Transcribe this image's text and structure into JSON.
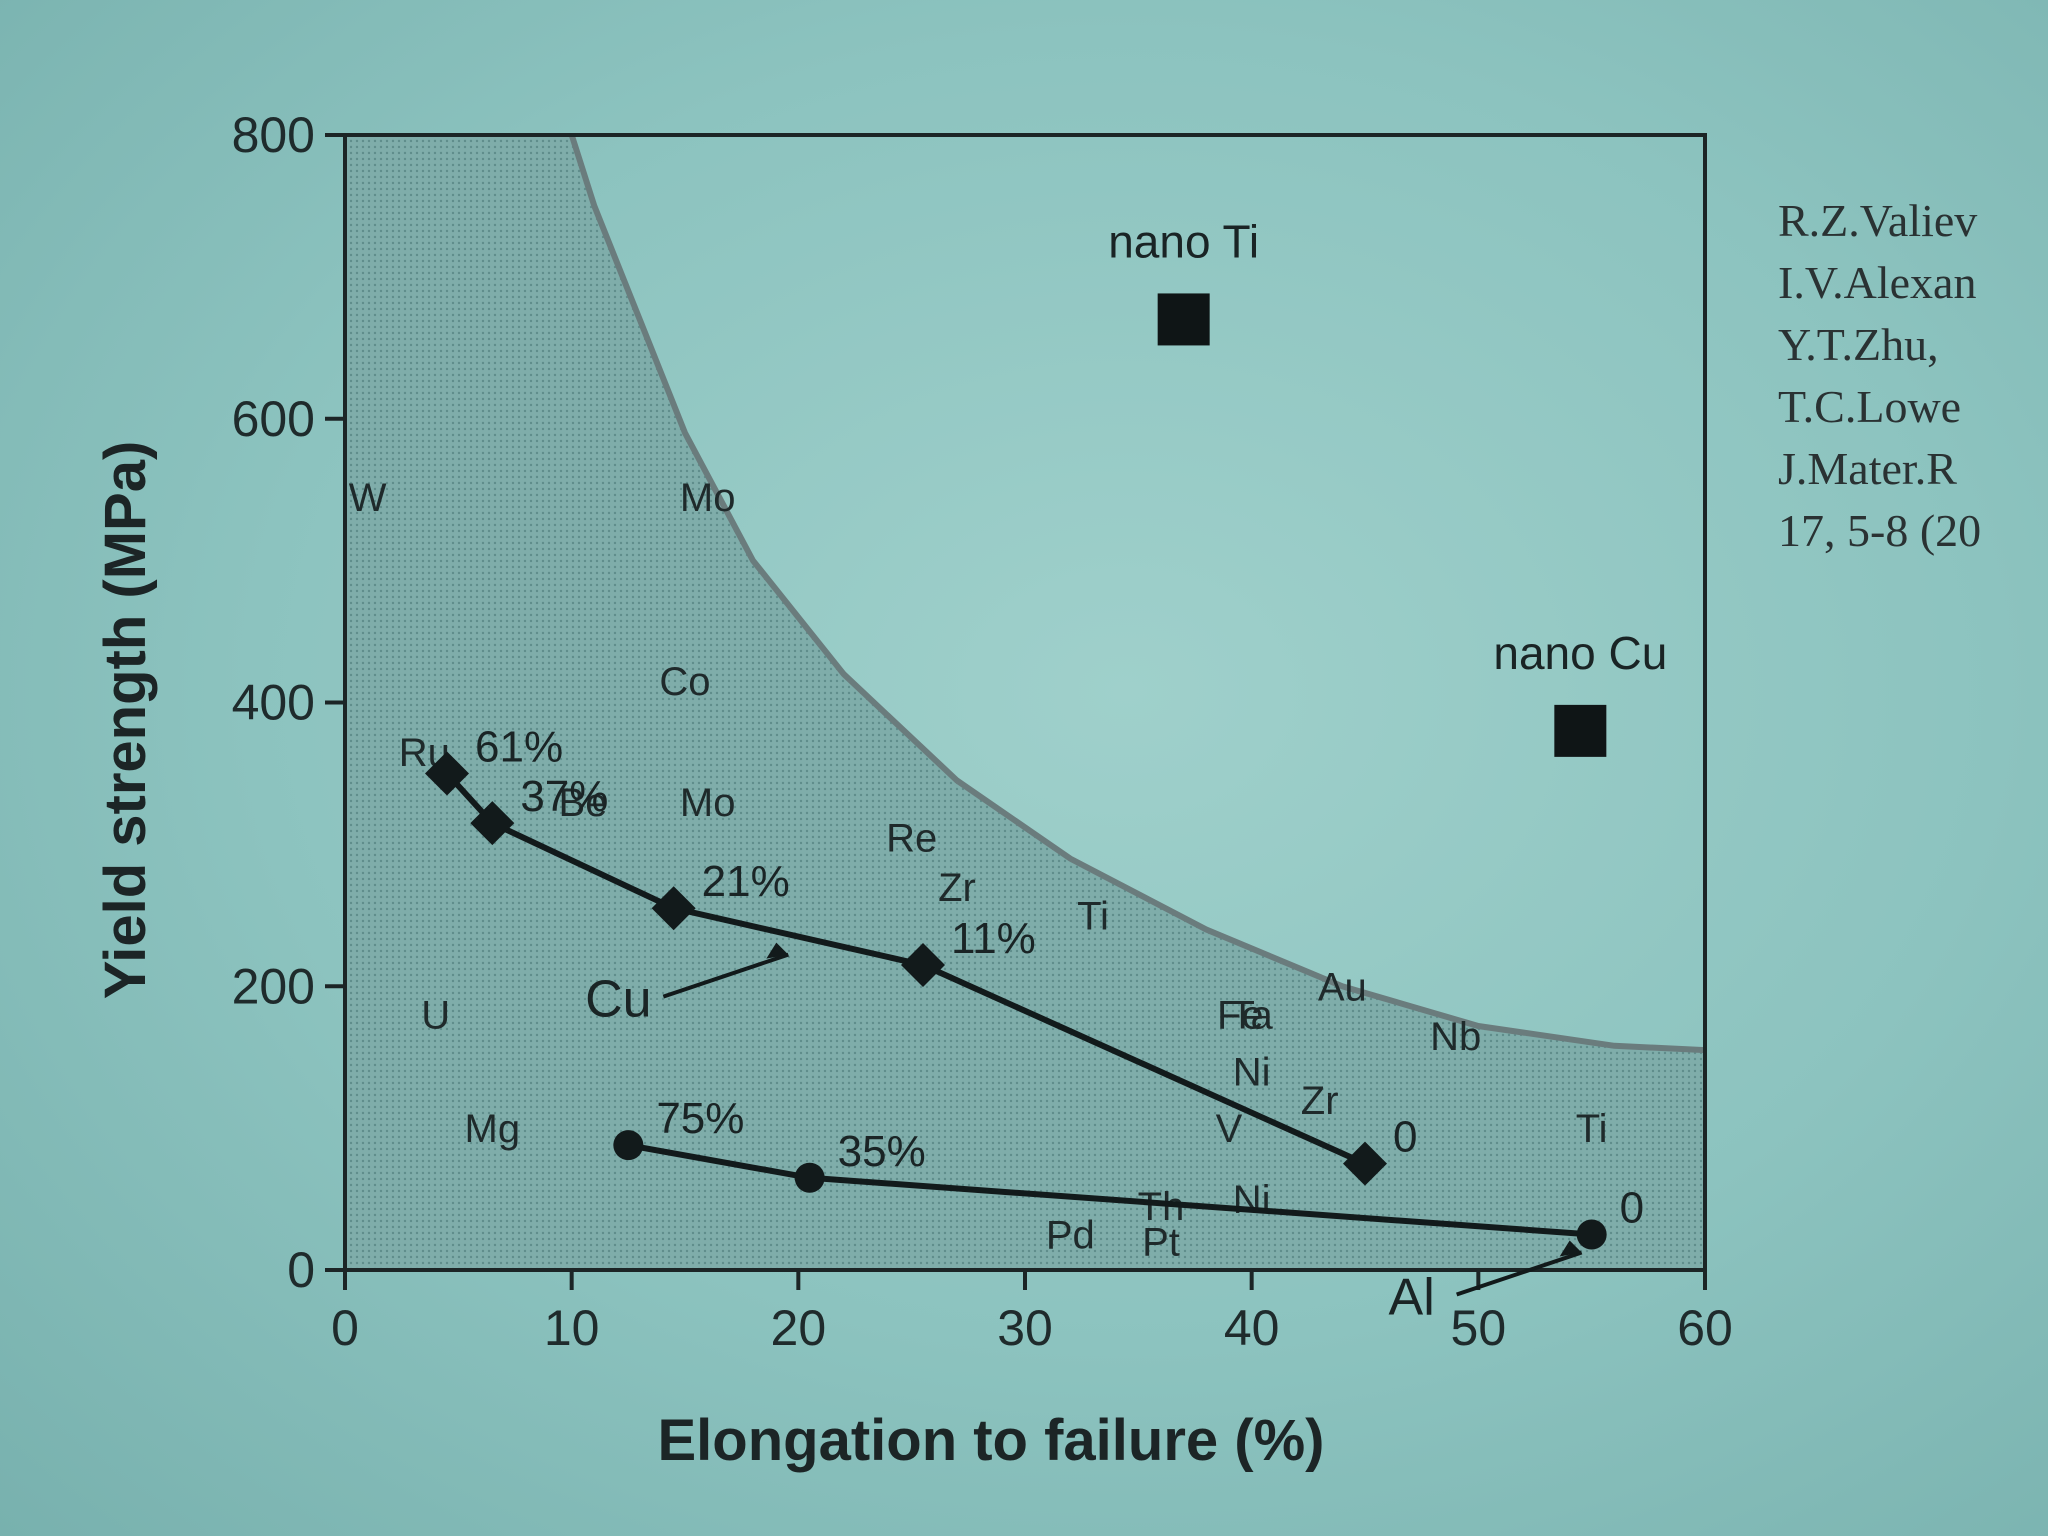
{
  "chart_data": {
    "type": "scatter",
    "xlabel": "Elongation to failure (%)",
    "ylabel": "Yield strength (MPa)",
    "xlim": [
      0,
      60
    ],
    "ylim": [
      0,
      800
    ],
    "x_ticks": [
      "0",
      "10",
      "20",
      "30",
      "40",
      "50",
      "60"
    ],
    "y_ticks": [
      "0",
      "200",
      "400",
      "600",
      "800"
    ],
    "grid": false,
    "shaded_region_boundary": {
      "description_free": true,
      "points": [
        [
          10,
          800
        ],
        [
          11,
          750
        ],
        [
          13,
          670
        ],
        [
          15,
          590
        ],
        [
          18,
          500
        ],
        [
          22,
          420
        ],
        [
          27,
          345
        ],
        [
          32,
          290
        ],
        [
          38,
          240
        ],
        [
          44,
          200
        ],
        [
          50,
          172
        ],
        [
          56,
          158
        ],
        [
          60,
          155
        ]
      ]
    },
    "series": [
      {
        "name": "Cu",
        "marker": "diamond",
        "points": [
          {
            "x": 4.5,
            "y": 350,
            "label": "61%"
          },
          {
            "x": 6.5,
            "y": 315,
            "label": "37%"
          },
          {
            "x": 14.5,
            "y": 255,
            "label": "21%"
          },
          {
            "x": 25.5,
            "y": 215,
            "label": "11%"
          },
          {
            "x": 45,
            "y": 75,
            "label": "0"
          }
        ]
      },
      {
        "name": "Al",
        "marker": "circle",
        "points": [
          {
            "x": 12.5,
            "y": 88,
            "label": "75%"
          },
          {
            "x": 20.5,
            "y": 65,
            "label": "35%"
          },
          {
            "x": 55,
            "y": 25,
            "label": "0"
          }
        ]
      }
    ],
    "nano_points": [
      {
        "label": "nano Ti",
        "x": 37,
        "y": 670
      },
      {
        "label": "nano Cu",
        "x": 54.5,
        "y": 380
      }
    ],
    "element_labels": [
      {
        "text": "W",
        "x": 1,
        "y": 545
      },
      {
        "text": "Mo",
        "x": 16,
        "y": 545
      },
      {
        "text": "Co",
        "x": 15,
        "y": 415
      },
      {
        "text": "Ru",
        "x": 3.5,
        "y": 365
      },
      {
        "text": "Be",
        "x": 10.5,
        "y": 330
      },
      {
        "text": "Mo",
        "x": 16,
        "y": 330
      },
      {
        "text": "Re",
        "x": 25,
        "y": 305
      },
      {
        "text": "Zr",
        "x": 27,
        "y": 270
      },
      {
        "text": "Ti",
        "x": 33,
        "y": 250
      },
      {
        "text": "U",
        "x": 4,
        "y": 180
      },
      {
        "text": "Au",
        "x": 44,
        "y": 200
      },
      {
        "text": "Fe",
        "x": 39.5,
        "y": 180
      },
      {
        "text": "Ta",
        "x": 40,
        "y": 180
      },
      {
        "text": "Nb",
        "x": 49,
        "y": 165
      },
      {
        "text": "Ni",
        "x": 40,
        "y": 140
      },
      {
        "text": "Zr",
        "x": 43,
        "y": 120
      },
      {
        "text": "Mg",
        "x": 6.5,
        "y": 100
      },
      {
        "text": "V",
        "x": 39,
        "y": 100
      },
      {
        "text": "Ti",
        "x": 55,
        "y": 100
      },
      {
        "text": "Th",
        "x": 36,
        "y": 45
      },
      {
        "text": "Ni",
        "x": 40,
        "y": 50
      },
      {
        "text": "Pd",
        "x": 32,
        "y": 25
      },
      {
        "text": "Pt",
        "x": 36,
        "y": 20
      }
    ]
  },
  "citation": [
    "R.Z.Valiev",
    "I.V.Alexan",
    "Y.T.Zhu,",
    "T.C.Lowe",
    "J.Mater.R",
    "17, 5-8 (20"
  ],
  "colors": {
    "background": "#8cc3bf",
    "shaded_region": "#7aa7a4",
    "boundary_curve": "#6d7f80",
    "ink": "#1a2425"
  }
}
